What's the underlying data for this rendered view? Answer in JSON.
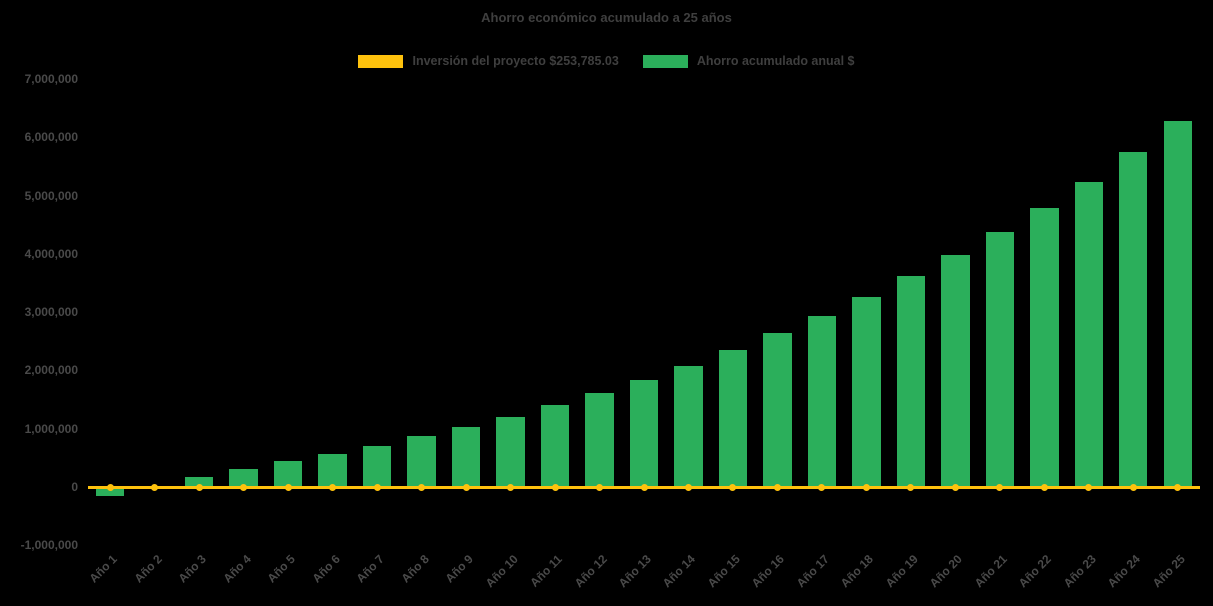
{
  "chart_data": {
    "type": "bar",
    "title": "Ahorro económico acumulado a 25 años",
    "categories": [
      "Año 1",
      "Año 2",
      "Año 3",
      "Año 4",
      "Año 5",
      "Año 6",
      "Año 7",
      "Año 8",
      "Año 9",
      "Año 10",
      "Año 11",
      "Año 12",
      "Año 13",
      "Año 14",
      "Año 15",
      "Año 16",
      "Año 17",
      "Año 18",
      "Año 19",
      "Año 20",
      "Año 21",
      "Año 22",
      "Año 23",
      "Año 24",
      "Año 25"
    ],
    "series": [
      {
        "name": "Inversión del proyecto $253,785.03",
        "type": "line",
        "color": "#FEC20D",
        "marker": "circle",
        "constant_value": 0,
        "investment_amount_label": "$253,785.03"
      },
      {
        "name": "Ahorro acumulado anual $",
        "type": "bar",
        "color": "#2BAF5B",
        "values": [
          -150000,
          20000,
          180000,
          330000,
          460000,
          580000,
          720000,
          880000,
          1040000,
          1220000,
          1420000,
          1630000,
          1850000,
          2090000,
          2360000,
          2650000,
          2950000,
          3270000,
          3630000,
          4000000,
          4390000,
          4800000,
          5250000,
          5760000,
          6290000
        ]
      }
    ],
    "ylim": [
      -1000000,
      7000000
    ],
    "yticks": [
      {
        "value": 7000000,
        "label": "7,000,000"
      },
      {
        "value": 6000000,
        "label": "6,000,000"
      },
      {
        "value": 5000000,
        "label": "5,000,000"
      },
      {
        "value": 4000000,
        "label": "4,000,000"
      },
      {
        "value": 3000000,
        "label": "3,000,000"
      },
      {
        "value": 2000000,
        "label": "2,000,000"
      },
      {
        "value": 1000000,
        "label": "1,000,000"
      },
      {
        "value": 0,
        "label": "0"
      },
      {
        "value": -1000000,
        "label": "-1,000,000"
      }
    ],
    "grid": false,
    "legend_position": "top",
    "background": "#000000",
    "text_color": "#4A4A4A"
  }
}
